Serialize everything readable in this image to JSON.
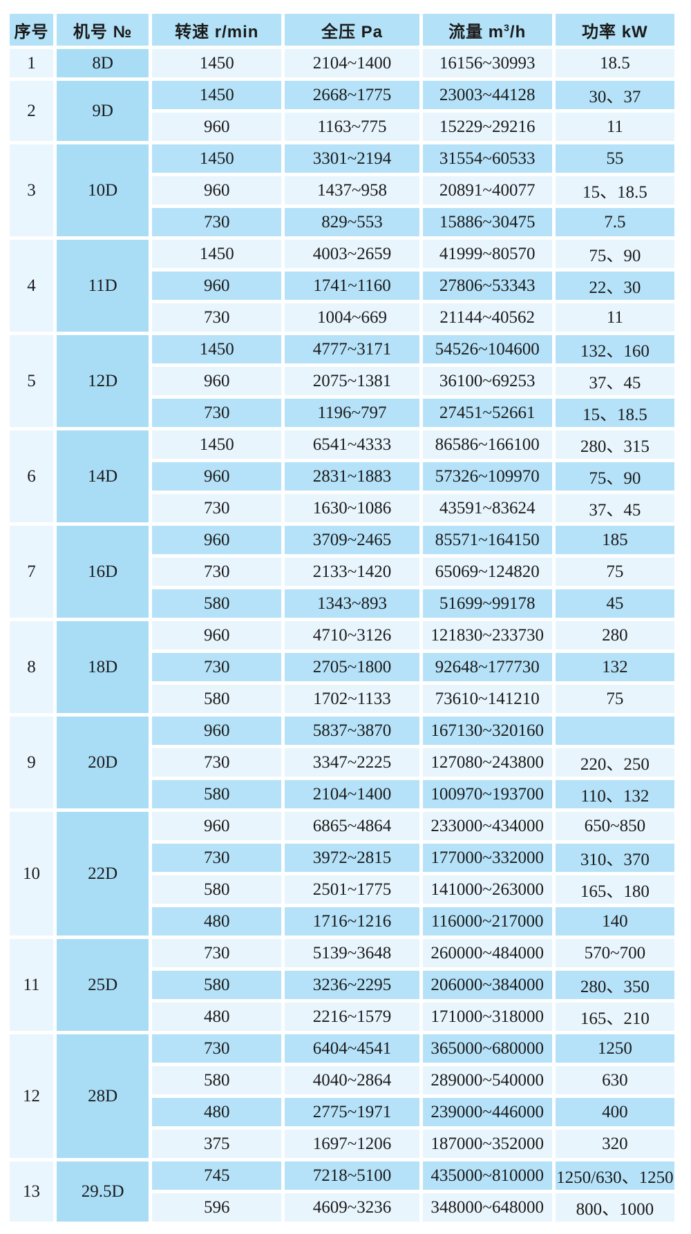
{
  "colors": {
    "header_bg": "#b3e1f7",
    "model_cell_bg": "#a9ddf6",
    "index_col_bg": "#eaf6fd",
    "row_light": "#e8f5fd",
    "row_medium": "#b5e2f8",
    "grid_white": "#ffffff",
    "text": "#1a1a1a"
  },
  "table": {
    "header": {
      "index": "序号",
      "model": "机号 №",
      "speed": "转速 r/min",
      "pressure": "全压 Pa",
      "flow_prefix": "流量 m",
      "flow_sup": "3",
      "flow_suffix": "/h",
      "power": "功率 kW"
    },
    "groups": [
      {
        "index": "1",
        "model": "8D",
        "rows": [
          {
            "speed": "1450",
            "pressure": "2104~1400",
            "flow": "16156~30993",
            "power": "18.5"
          }
        ]
      },
      {
        "index": "2",
        "model": "9D",
        "rows": [
          {
            "speed": "1450",
            "pressure": "2668~1775",
            "flow": "23003~44128",
            "power": "30、37"
          },
          {
            "speed": "960",
            "pressure": "1163~775",
            "flow": "15229~29216",
            "power": "11"
          }
        ]
      },
      {
        "index": "3",
        "model": "10D",
        "rows": [
          {
            "speed": "1450",
            "pressure": "3301~2194",
            "flow": "31554~60533",
            "power": "55"
          },
          {
            "speed": "960",
            "pressure": "1437~958",
            "flow": "20891~40077",
            "power": "15、18.5"
          },
          {
            "speed": "730",
            "pressure": "829~553",
            "flow": "15886~30475",
            "power": "7.5"
          }
        ]
      },
      {
        "index": "4",
        "model": "11D",
        "rows": [
          {
            "speed": "1450",
            "pressure": "4003~2659",
            "flow": "41999~80570",
            "power": "75、90"
          },
          {
            "speed": "960",
            "pressure": "1741~1160",
            "flow": "27806~53343",
            "power": "22、30"
          },
          {
            "speed": "730",
            "pressure": "1004~669",
            "flow": "21144~40562",
            "power": "11"
          }
        ]
      },
      {
        "index": "5",
        "model": "12D",
        "rows": [
          {
            "speed": "1450",
            "pressure": "4777~3171",
            "flow": "54526~104600",
            "power": "132、160"
          },
          {
            "speed": "960",
            "pressure": "2075~1381",
            "flow": "36100~69253",
            "power": "37、45"
          },
          {
            "speed": "730",
            "pressure": "1196~797",
            "flow": "27451~52661",
            "power": "15、18.5"
          }
        ]
      },
      {
        "index": "6",
        "model": "14D",
        "rows": [
          {
            "speed": "1450",
            "pressure": "6541~4333",
            "flow": "86586~166100",
            "power": "280、315"
          },
          {
            "speed": "960",
            "pressure": "2831~1883",
            "flow": "57326~109970",
            "power": "75、90"
          },
          {
            "speed": "730",
            "pressure": "1630~1086",
            "flow": "43591~83624",
            "power": "37、45"
          }
        ]
      },
      {
        "index": "7",
        "model": "16D",
        "rows": [
          {
            "speed": "960",
            "pressure": "3709~2465",
            "flow": "85571~164150",
            "power": "185"
          },
          {
            "speed": "730",
            "pressure": "2133~1420",
            "flow": "65069~124820",
            "power": "75"
          },
          {
            "speed": "580",
            "pressure": "1343~893",
            "flow": "51699~99178",
            "power": "45"
          }
        ]
      },
      {
        "index": "8",
        "model": "18D",
        "rows": [
          {
            "speed": "960",
            "pressure": "4710~3126",
            "flow": "121830~233730",
            "power": "280"
          },
          {
            "speed": "730",
            "pressure": "2705~1800",
            "flow": "92648~177730",
            "power": "132"
          },
          {
            "speed": "580",
            "pressure": "1702~1133",
            "flow": "73610~141210",
            "power": "75"
          }
        ]
      },
      {
        "index": "9",
        "model": "20D",
        "rows": [
          {
            "speed": "960",
            "pressure": "5837~3870",
            "flow": "167130~320160",
            "power": ""
          },
          {
            "speed": "730",
            "pressure": "3347~2225",
            "flow": "127080~243800",
            "power": "220、250"
          },
          {
            "speed": "580",
            "pressure": "2104~1400",
            "flow": "100970~193700",
            "power": "110、132"
          }
        ]
      },
      {
        "index": "10",
        "model": "22D",
        "rows": [
          {
            "speed": "960",
            "pressure": "6865~4864",
            "flow": "233000~434000",
            "power": "650~850"
          },
          {
            "speed": "730",
            "pressure": "3972~2815",
            "flow": "177000~332000",
            "power": "310、370"
          },
          {
            "speed": "580",
            "pressure": "2501~1775",
            "flow": "141000~263000",
            "power": "165、180"
          },
          {
            "speed": "480",
            "pressure": "1716~1216",
            "flow": "116000~217000",
            "power": "140"
          }
        ]
      },
      {
        "index": "11",
        "model": "25D",
        "rows": [
          {
            "speed": "730",
            "pressure": "5139~3648",
            "flow": "260000~484000",
            "power": "570~700"
          },
          {
            "speed": "580",
            "pressure": "3236~2295",
            "flow": "206000~384000",
            "power": "280、350"
          },
          {
            "speed": "480",
            "pressure": "2216~1579",
            "flow": "171000~318000",
            "power": "165、210"
          }
        ]
      },
      {
        "index": "12",
        "model": "28D",
        "rows": [
          {
            "speed": "730",
            "pressure": "6404~4541",
            "flow": "365000~680000",
            "power": "1250"
          },
          {
            "speed": "580",
            "pressure": "4040~2864",
            "flow": "289000~540000",
            "power": "630"
          },
          {
            "speed": "480",
            "pressure": "2775~1971",
            "flow": "239000~446000",
            "power": "400"
          },
          {
            "speed": "375",
            "pressure": "1697~1206",
            "flow": "187000~352000",
            "power": "320"
          }
        ]
      },
      {
        "index": "13",
        "model": "29.5D",
        "rows": [
          {
            "speed": "745",
            "pressure": "7218~5100",
            "flow": "435000~810000",
            "power": "1250/630、1250"
          },
          {
            "speed": "596",
            "pressure": "4609~3236",
            "flow": "348000~648000",
            "power": "800、1000"
          }
        ]
      }
    ]
  }
}
